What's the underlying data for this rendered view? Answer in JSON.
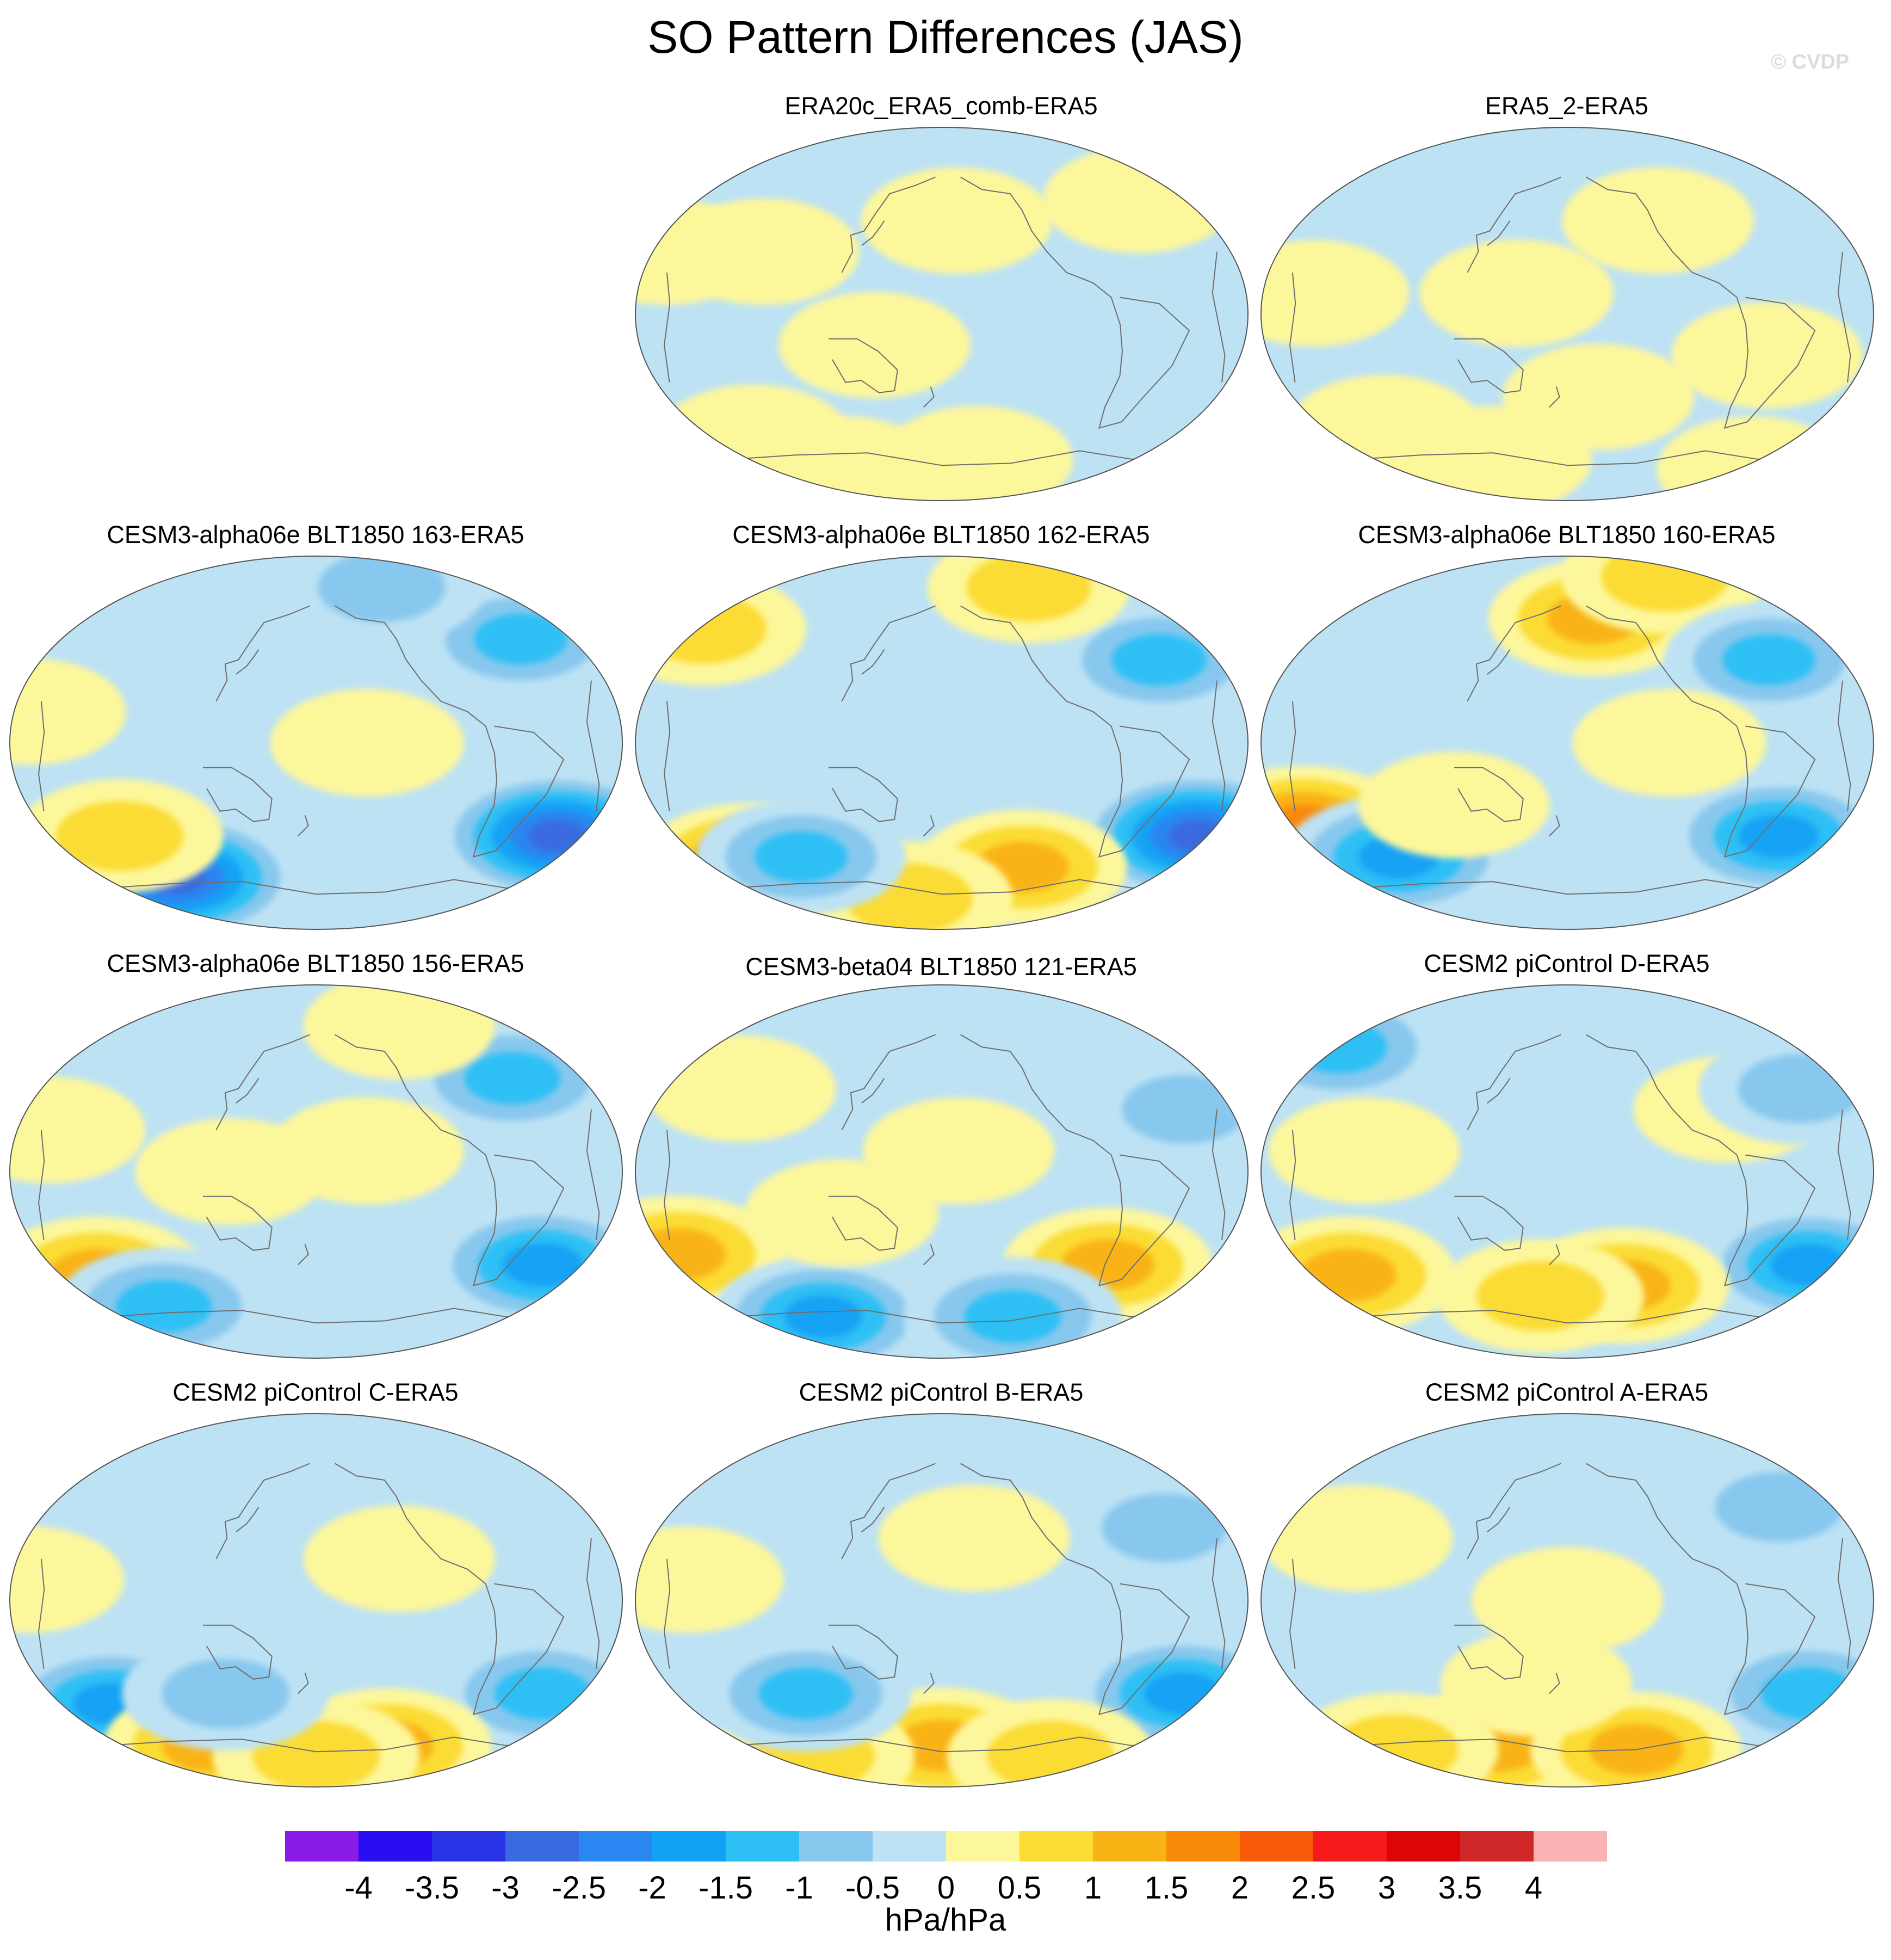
{
  "figure": {
    "title": "SO Pattern Differences (JAS)",
    "credit": "© CVDP"
  },
  "chart_data": {
    "type": "heatmap",
    "title": "SO Pattern Differences (JAS)",
    "projection": "Robinson (Pacific-centered global maps)",
    "units": "hPa/hPa",
    "colorbar": {
      "levels": [
        -4,
        -3.5,
        -3,
        -2.5,
        -2,
        -1.5,
        -1,
        -0.5,
        0,
        0.5,
        1,
        1.5,
        2,
        2.5,
        3,
        3.5,
        4
      ],
      "tick_labels": [
        "-4",
        "-3.5",
        "-3",
        "-2.5",
        "-2",
        "-1.5",
        "-1",
        "-0.5",
        "0",
        "0.5",
        "1",
        "1.5",
        "2",
        "2.5",
        "3",
        "3.5",
        "4"
      ],
      "colors": [
        "#8a1ae8",
        "#2a0ef2",
        "#2833e6",
        "#3a6ae0",
        "#2a86f0",
        "#12a2f5",
        "#2ec0f5",
        "#88c8ee",
        "#bde2f4",
        "#fdf79c",
        "#fbdc35",
        "#f9b315",
        "#f98a08",
        "#f85a0a",
        "#f61a1a",
        "#dc0606",
        "#d02828",
        "#f9b3b3"
      ]
    },
    "panels": [
      {
        "id": "era20c",
        "title": "ERA20c_ERA5_comb-ERA5",
        "anomalies": [
          {
            "lon": -110,
            "lat": 30,
            "value": 0.3
          },
          {
            "lon": -140,
            "lat": -60,
            "value": 0.4
          },
          {
            "lon": 140,
            "lat": 55,
            "value": 0.3
          },
          {
            "lon": 10,
            "lat": 45,
            "value": 0.3
          },
          {
            "lon": -40,
            "lat": -15,
            "value": 0.3
          },
          {
            "lon": -170,
            "lat": 30,
            "value": 0.3
          },
          {
            "lon": -90,
            "lat": -75,
            "value": 0.3
          },
          {
            "lon": 30,
            "lat": -70,
            "value": 0.3
          }
        ]
      },
      {
        "id": "era5-2",
        "title": "ERA5_2-ERA5",
        "anomalies": [
          {
            "lon": -150,
            "lat": 10,
            "value": 0.3
          },
          {
            "lon": -30,
            "lat": 10,
            "value": 0.4
          },
          {
            "lon": 120,
            "lat": -20,
            "value": 0.3
          },
          {
            "lon": 20,
            "lat": -40,
            "value": 0.3
          },
          {
            "lon": -130,
            "lat": -55,
            "value": 0.3
          },
          {
            "lon": 60,
            "lat": 45,
            "value": 0.3
          },
          {
            "lon": -60,
            "lat": -70,
            "value": 0.3
          },
          {
            "lon": 170,
            "lat": -75,
            "value": 0.3
          }
        ]
      },
      {
        "id": "a163",
        "title": "CESM3-alpha06e BLT1850 163-ERA5",
        "anomalies": [
          {
            "lon": 160,
            "lat": -45,
            "value": -2.6
          },
          {
            "lon": -110,
            "lat": -65,
            "value": -2.7
          },
          {
            "lon": -130,
            "lat": -45,
            "value": 1.0
          },
          {
            "lon": 100,
            "lat": 80,
            "value": 0.9
          },
          {
            "lon": -170,
            "lat": 15,
            "value": 0.3
          },
          {
            "lon": 30,
            "lat": 0,
            "value": 0.4
          },
          {
            "lon": 140,
            "lat": 50,
            "value": -1.1
          },
          {
            "lon": 60,
            "lat": 75,
            "value": -1.0
          }
        ]
      },
      {
        "id": "a162",
        "title": "CESM3-alpha06e BLT1850 162-ERA5",
        "anomalies": [
          {
            "lon": 170,
            "lat": -45,
            "value": -2.7
          },
          {
            "lon": 140,
            "lat": 40,
            "value": -1.3
          },
          {
            "lon": -140,
            "lat": -58,
            "value": 1.6
          },
          {
            "lon": 60,
            "lat": -60,
            "value": 1.1
          },
          {
            "lon": -30,
            "lat": -75,
            "value": 1.0
          },
          {
            "lon": -100,
            "lat": -55,
            "value": -1.1
          },
          {
            "lon": -170,
            "lat": 55,
            "value": 1.0
          },
          {
            "lon": 80,
            "lat": 75,
            "value": 0.8
          }
        ]
      },
      {
        "id": "a160",
        "title": "CESM3-alpha06e BLT1850 160-ERA5",
        "anomalies": [
          {
            "lon": 140,
            "lat": -45,
            "value": -2.0
          },
          {
            "lon": -170,
            "lat": -40,
            "value": 1.6
          },
          {
            "lon": -120,
            "lat": -55,
            "value": -2.0
          },
          {
            "lon": 20,
            "lat": 60,
            "value": 1.2
          },
          {
            "lon": 100,
            "lat": 80,
            "value": 1.0
          },
          {
            "lon": 130,
            "lat": 40,
            "value": -1.1
          },
          {
            "lon": -70,
            "lat": -30,
            "value": 0.3
          },
          {
            "lon": 60,
            "lat": 0,
            "value": 0.4
          }
        ]
      },
      {
        "id": "a156",
        "title": "CESM3-alpha06e BLT1850 156-ERA5",
        "anomalies": [
          {
            "lon": 150,
            "lat": -45,
            "value": -2.0
          },
          {
            "lon": -150,
            "lat": -50,
            "value": 1.4
          },
          {
            "lon": -120,
            "lat": -65,
            "value": -1.4
          },
          {
            "lon": 130,
            "lat": 45,
            "value": -1.4
          },
          {
            "lon": 30,
            "lat": 10,
            "value": 0.4
          },
          {
            "lon": -160,
            "lat": 20,
            "value": 0.3
          },
          {
            "lon": 70,
            "lat": 70,
            "value": 0.3
          },
          {
            "lon": -50,
            "lat": 0,
            "value": 0.3
          }
        ]
      },
      {
        "id": "b121",
        "title": "CESM3-beta04 BLT1850 121-ERA5",
        "anomalies": [
          {
            "lon": -170,
            "lat": -40,
            "value": 1.4
          },
          {
            "lon": 110,
            "lat": -45,
            "value": 1.1
          },
          {
            "lon": -100,
            "lat": -70,
            "value": -1.7
          },
          {
            "lon": 60,
            "lat": -70,
            "value": -1.5
          },
          {
            "lon": 150,
            "lat": 30,
            "value": -0.8
          },
          {
            "lon": -130,
            "lat": 40,
            "value": 0.3
          },
          {
            "lon": 10,
            "lat": 10,
            "value": 0.3
          },
          {
            "lon": -60,
            "lat": -20,
            "value": 0.4
          }
        ]
      },
      {
        "id": "pid",
        "title": "CESM2 piControl D-ERA5",
        "anomalies": [
          {
            "lon": 160,
            "lat": -45,
            "value": -1.6
          },
          {
            "lon": -150,
            "lat": -50,
            "value": 1.4
          },
          {
            "lon": 40,
            "lat": -55,
            "value": 1.2
          },
          {
            "lon": -170,
            "lat": 60,
            "value": -1.4
          },
          {
            "lon": -20,
            "lat": -60,
            "value": 1.0
          },
          {
            "lon": 100,
            "lat": 30,
            "value": 0.3
          },
          {
            "lon": -120,
            "lat": 10,
            "value": 0.3
          },
          {
            "lon": 150,
            "lat": 40,
            "value": -0.8
          }
        ]
      },
      {
        "id": "pic",
        "title": "CESM2 piControl C-ERA5",
        "anomalies": [
          {
            "lon": 150,
            "lat": -45,
            "value": -1.4
          },
          {
            "lon": -140,
            "lat": -50,
            "value": -1.6
          },
          {
            "lon": -90,
            "lat": -70,
            "value": 1.2
          },
          {
            "lon": 60,
            "lat": -70,
            "value": 1.1
          },
          {
            "lon": 0,
            "lat": -75,
            "value": 1.0
          },
          {
            "lon": -60,
            "lat": -45,
            "value": -1.0
          },
          {
            "lon": -170,
            "lat": 10,
            "value": 0.3
          },
          {
            "lon": 50,
            "lat": 20,
            "value": 0.3
          }
        ]
      },
      {
        "id": "pib",
        "title": "CESM2 piControl B-ERA5",
        "anomalies": [
          {
            "lon": 160,
            "lat": -45,
            "value": -1.8
          },
          {
            "lon": 0,
            "lat": -70,
            "value": 1.2
          },
          {
            "lon": -120,
            "lat": -75,
            "value": 1.0
          },
          {
            "lon": 100,
            "lat": -75,
            "value": 1.0
          },
          {
            "lon": -90,
            "lat": -45,
            "value": -1.2
          },
          {
            "lon": 140,
            "lat": 35,
            "value": -0.8
          },
          {
            "lon": -150,
            "lat": 10,
            "value": 0.3
          },
          {
            "lon": 20,
            "lat": 30,
            "value": 0.3
          }
        ]
      },
      {
        "id": "pia",
        "title": "CESM2 piControl A-ERA5",
        "anomalies": [
          {
            "lon": 160,
            "lat": -45,
            "value": -1.4
          },
          {
            "lon": -60,
            "lat": -70,
            "value": 1.4
          },
          {
            "lon": 60,
            "lat": -72,
            "value": 1.2
          },
          {
            "lon": -150,
            "lat": -72,
            "value": 1.0
          },
          {
            "lon": 140,
            "lat": 45,
            "value": -1.0
          },
          {
            "lon": -130,
            "lat": 30,
            "value": 0.3
          },
          {
            "lon": 0,
            "lat": 0,
            "value": 0.3
          },
          {
            "lon": -20,
            "lat": -40,
            "value": 0.3
          }
        ]
      }
    ]
  }
}
